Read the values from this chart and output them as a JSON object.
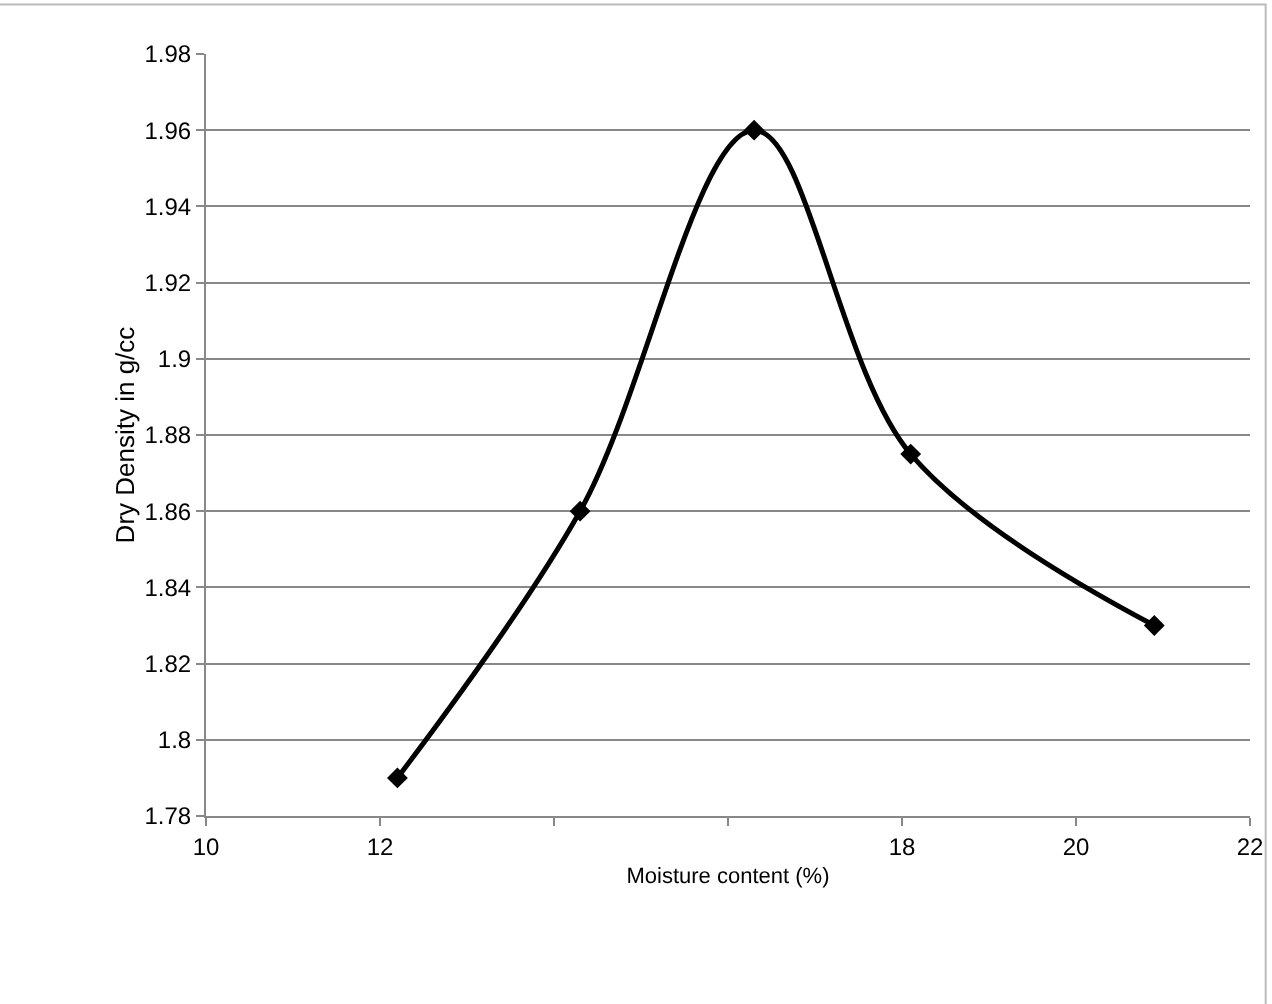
{
  "chart_data": {
    "type": "line",
    "xlabel": "Moisture content (%)",
    "ylabel": "Dry Density in g/cc",
    "x": [
      12.2,
      14.3,
      16.3,
      18.1,
      20.9
    ],
    "series": [
      {
        "color": "#000000",
        "values": [
          1.79,
          1.86,
          1.96,
          1.875,
          1.83
        ]
      }
    ],
    "xlim": [
      10,
      22
    ],
    "xticks": [
      10,
      12,
      {
        "value": 14,
        "label": null
      },
      {
        "value": 16,
        "label": null
      },
      18,
      20,
      22
    ],
    "ylim": [
      1.78,
      1.98
    ],
    "yticks": [
      1.78,
      1.8,
      1.82,
      1.84,
      1.86,
      1.88,
      1.9,
      1.92,
      1.94,
      1.96,
      1.98
    ],
    "grid": "y",
    "legend": false,
    "marker": "diamond",
    "line_style": "solid"
  }
}
